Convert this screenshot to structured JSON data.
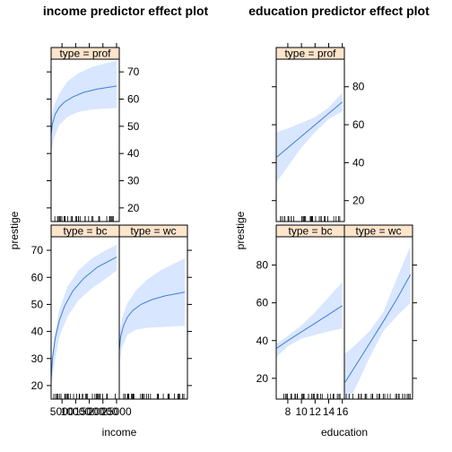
{
  "chart_data": [
    {
      "type": "line",
      "title": "income predictor effect plot",
      "xlabel": "income",
      "ylabel": "prestige",
      "x_ticks_visible": [
        "5000",
        "10000",
        "15000",
        "20000",
        "25000"
      ],
      "x_range": [
        1000,
        26000
      ],
      "ylim": [
        15,
        75
      ],
      "panels": [
        {
          "strip": "type = prof",
          "y_ticks": [
            20,
            30,
            40,
            50,
            60,
            70
          ],
          "fit": [
            [
              1000,
              47
            ],
            [
              1500,
              51
            ],
            [
              2500,
              54.5
            ],
            [
              4000,
              57
            ],
            [
              6000,
              59
            ],
            [
              9000,
              60.8
            ],
            [
              13000,
              62.5
            ],
            [
              18000,
              63.7
            ],
            [
              25000,
              64.8
            ]
          ],
          "upper": [
            [
              1000,
              53
            ],
            [
              2000,
              57.5
            ],
            [
              4000,
              62
            ],
            [
              7000,
              66.5
            ],
            [
              11000,
              69.5
            ],
            [
              16000,
              71.8
            ],
            [
              21000,
              73.2
            ],
            [
              25000,
              74
            ]
          ],
          "lower": [
            [
              1000,
              40
            ],
            [
              2000,
              45.5
            ],
            [
              4000,
              50.5
            ],
            [
              7000,
              53.5
            ],
            [
              11000,
              55.3
            ],
            [
              16000,
              56.2
            ],
            [
              21000,
              56.5
            ],
            [
              25000,
              56.7
            ]
          ]
        },
        {
          "strip": "type = bc",
          "y_ticks": [
            20,
            30,
            40,
            50,
            60,
            70
          ],
          "fit": [
            [
              1000,
              23
            ],
            [
              1500,
              30
            ],
            [
              2500,
              37.5
            ],
            [
              4000,
              44
            ],
            [
              6000,
              49.5
            ],
            [
              9000,
              55
            ],
            [
              13000,
              59.7
            ],
            [
              18000,
              63.8
            ],
            [
              25000,
              67.5
            ]
          ],
          "upper": [
            [
              1000,
              27
            ],
            [
              2000,
              37
            ],
            [
              4000,
              48
            ],
            [
              7000,
              56.5
            ],
            [
              11000,
              62.5
            ],
            [
              16000,
              67
            ],
            [
              21000,
              70
            ],
            [
              25000,
              72
            ]
          ],
          "lower": [
            [
              1000,
              19
            ],
            [
              2000,
              27
            ],
            [
              4000,
              38
            ],
            [
              7000,
              45.5
            ],
            [
              11000,
              51.5
            ],
            [
              16000,
              56
            ],
            [
              21000,
              59.5
            ],
            [
              25000,
              62.5
            ]
          ]
        },
        {
          "strip": "type = wc",
          "fit": [
            [
              1000,
              33
            ],
            [
              1500,
              38
            ],
            [
              2500,
              42
            ],
            [
              4000,
              45.3
            ],
            [
              6000,
              47.8
            ],
            [
              9000,
              50
            ],
            [
              13000,
              51.8
            ],
            [
              18000,
              53.2
            ],
            [
              25000,
              54.5
            ]
          ],
          "upper": [
            [
              1000,
              38
            ],
            [
              2000,
              45
            ],
            [
              4000,
              50.5
            ],
            [
              7000,
              55
            ],
            [
              11000,
              59
            ],
            [
              16000,
              62.5
            ],
            [
              21000,
              65
            ],
            [
              25000,
              67
            ]
          ],
          "lower": [
            [
              1000,
              28
            ],
            [
              2000,
              34
            ],
            [
              4000,
              38.8
            ],
            [
              7000,
              40.6
            ],
            [
              11000,
              41.3
            ],
            [
              16000,
              41.6
            ],
            [
              21000,
              41.9
            ],
            [
              25000,
              42
            ]
          ]
        }
      ]
    },
    {
      "type": "line",
      "title": "education predictor effect plot",
      "xlabel": "education",
      "ylabel": "prestige",
      "x_ticks": [
        8,
        10,
        12,
        14,
        16
      ],
      "x_range": [
        6.3,
        16.3
      ],
      "ylim": [
        9,
        95
      ],
      "panels": [
        {
          "strip": "type = prof",
          "y_ticks": [
            20,
            40,
            60,
            80
          ],
          "fit": [
            [
              6.4,
              43
            ],
            [
              16.0,
              72
            ]
          ],
          "upper": [
            [
              6.4,
              56
            ],
            [
              8,
              58
            ],
            [
              10,
              61
            ],
            [
              12,
              64
            ],
            [
              14,
              69
            ],
            [
              16,
              77
            ]
          ],
          "lower": [
            [
              6.4,
              30
            ],
            [
              8,
              38
            ],
            [
              10,
              48
            ],
            [
              12,
              56
            ],
            [
              14,
              63
            ],
            [
              16,
              67
            ]
          ]
        },
        {
          "strip": "type = bc",
          "y_ticks": [
            20,
            40,
            60,
            80
          ],
          "fit": [
            [
              6.4,
              36
            ],
            [
              8,
              40
            ],
            [
              10,
              44.6
            ],
            [
              12,
              49.2
            ],
            [
              14,
              53.8
            ],
            [
              16,
              58.5
            ]
          ],
          "upper": [
            [
              6.4,
              38.5
            ],
            [
              8,
              42.5
            ],
            [
              10,
              48
            ],
            [
              12,
              55
            ],
            [
              14,
              63
            ],
            [
              16,
              71
            ]
          ],
          "lower": [
            [
              6.4,
              31.5
            ],
            [
              8,
              37
            ],
            [
              10,
              41
            ],
            [
              12,
              43
            ],
            [
              14,
              44.8
            ],
            [
              16,
              46.5
            ]
          ]
        },
        {
          "strip": "type = wc",
          "fit": [
            [
              6.4,
              18
            ],
            [
              8,
              27
            ],
            [
              10,
              38.5
            ],
            [
              12,
              50
            ],
            [
              14,
              62
            ],
            [
              16,
              75
            ]
          ],
          "upper": [
            [
              6.4,
              33
            ],
            [
              8,
              38
            ],
            [
              10,
              45
            ],
            [
              12,
              55
            ],
            [
              14,
              73
            ],
            [
              16,
              90
            ]
          ],
          "lower": [
            [
              6.4,
              5
            ],
            [
              8,
              15.5
            ],
            [
              10,
              31
            ],
            [
              12,
              45
            ],
            [
              14,
              53
            ],
            [
              16,
              60
            ]
          ]
        }
      ]
    }
  ],
  "colors": {
    "line": "#3d7fd6",
    "band": "#d8e6ff",
    "strip": "#ffe5cc",
    "frame": "#000000"
  }
}
